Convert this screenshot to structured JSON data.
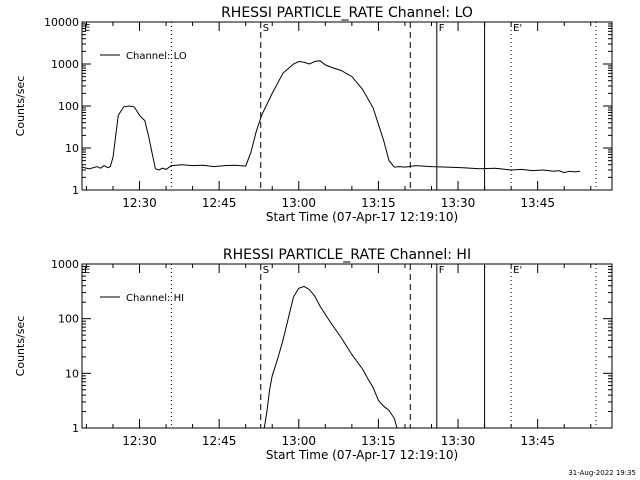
{
  "footer": {
    "timestamp": "31-Aug-2022 19:35"
  },
  "colors": {
    "background": "#ffffff",
    "foreground": "#000000"
  },
  "chart_data": [
    {
      "type": "line",
      "title": "RHESSI PARTICLE_RATE Channel: LO",
      "xlabel": "Start Time (07-Apr-17 12:19:10)",
      "ylabel": "Counts/sec",
      "yscale": "log",
      "ylim": [
        1,
        10000
      ],
      "yticks": [
        1,
        10,
        100,
        1000,
        10000
      ],
      "ytick_labels": [
        "1",
        "10",
        "100",
        "1000",
        "10000"
      ],
      "xlim": [
        "12:19:10",
        "13:59:00"
      ],
      "xticks": [
        "12:30",
        "12:45",
        "13:00",
        "13:15",
        "13:30",
        "13:45"
      ],
      "legend": {
        "label": "Channel: LO",
        "placement": "top-left"
      },
      "grid": false,
      "series": [
        {
          "name": "Channel: LO",
          "x": [
            "12:19:10",
            "12:20:30",
            "12:22:00",
            "12:22:40",
            "12:23:20",
            "12:24:00",
            "12:24:30",
            "12:25:00",
            "12:26:00",
            "12:27:00",
            "12:28:00",
            "12:29:00",
            "12:30:00",
            "12:31:00",
            "12:31:40",
            "12:32:20",
            "12:33:00",
            "12:33:40",
            "12:34:20",
            "12:35:00",
            "12:36:00",
            "12:38:00",
            "12:40:00",
            "12:42:00",
            "12:44:00",
            "12:46:00",
            "12:48:00",
            "12:50:00",
            "12:51:00",
            "12:52:00",
            "12:53:00",
            "12:55:00",
            "12:57:00",
            "12:59:00",
            "13:00:00",
            "13:01:00",
            "13:02:00",
            "13:03:00",
            "13:04:00",
            "13:05:00",
            "13:06:00",
            "13:08:00",
            "13:10:00",
            "13:12:00",
            "13:14:00",
            "13:16:00",
            "13:17:00",
            "13:18:00",
            "13:19:00",
            "13:20:00",
            "13:22:00",
            "13:25:00",
            "13:28:00",
            "13:31:00",
            "13:34:00",
            "13:37:00",
            "13:40:00",
            "13:42:00",
            "13:44:00",
            "13:46:00",
            "13:48:00",
            "13:49:00",
            "13:50:00",
            "13:51:00",
            "13:52:00",
            "13:53:00"
          ],
          "values": [
            3.5,
            3.2,
            3.6,
            3.3,
            3.8,
            3.4,
            3.6,
            6,
            60,
            95,
            100,
            95,
            60,
            45,
            20,
            8,
            3.2,
            3,
            3.3,
            3.1,
            3.8,
            4,
            3.8,
            3.9,
            3.6,
            3.8,
            3.9,
            3.7,
            8,
            25,
            60,
            200,
            600,
            1000,
            1150,
            1100,
            1000,
            1150,
            1200,
            950,
            850,
            700,
            500,
            250,
            90,
            15,
            5,
            3.5,
            3.6,
            3.5,
            3.8,
            3.6,
            3.5,
            3.4,
            3.2,
            3.3,
            3.0,
            3.1,
            2.9,
            3.0,
            2.8,
            2.9,
            2.6,
            2.8,
            2.7,
            2.8
          ]
        }
      ],
      "markers": [
        {
          "label": "E",
          "time": "12:19:10",
          "style": "dotted"
        },
        {
          "label": "",
          "time": "12:36:00",
          "style": "dotted"
        },
        {
          "label": "S",
          "time": "12:52:50",
          "style": "dashed"
        },
        {
          "label": "",
          "time": "13:21:00",
          "style": "dashed"
        },
        {
          "label": "F",
          "time": "13:26:00",
          "style": "solid"
        },
        {
          "label": "",
          "time": "13:35:00",
          "style": "solid"
        },
        {
          "label": "E'",
          "time": "13:40:00",
          "style": "dotted"
        },
        {
          "label": "",
          "time": "13:56:00",
          "style": "dotted"
        }
      ]
    },
    {
      "type": "line",
      "title": "RHESSI PARTICLE_RATE Channel: HI",
      "xlabel": "Start Time (07-Apr-17 12:19:10)",
      "ylabel": "Counts/sec",
      "yscale": "log",
      "ylim": [
        1,
        1000
      ],
      "yticks": [
        1,
        10,
        100,
        1000
      ],
      "ytick_labels": [
        "1",
        "10",
        "100",
        "1000"
      ],
      "xlim": [
        "12:19:10",
        "13:59:00"
      ],
      "xticks": [
        "12:30",
        "12:45",
        "13:00",
        "13:15",
        "13:30",
        "13:45"
      ],
      "legend": {
        "label": "Channel: HI",
        "placement": "top-left"
      },
      "grid": false,
      "series": [
        {
          "name": "Channel: HI",
          "x": [
            "12:53:30",
            "12:54:00",
            "12:54:30",
            "12:55:00",
            "12:56:00",
            "12:57:00",
            "12:58:00",
            "12:59:00",
            "13:00:00",
            "13:01:00",
            "13:02:00",
            "13:03:00",
            "13:04:00",
            "13:06:00",
            "13:08:00",
            "13:10:00",
            "13:12:00",
            "13:13:00",
            "13:14:00",
            "13:15:00",
            "13:16:00",
            "13:17:00",
            "13:18:00",
            "13:18:30"
          ],
          "values": [
            1,
            2,
            5,
            9,
            18,
            40,
            100,
            250,
            360,
            390,
            340,
            260,
            170,
            85,
            45,
            22,
            12,
            8,
            5.5,
            3.2,
            2.5,
            2.1,
            1.5,
            1
          ]
        }
      ],
      "markers": [
        {
          "label": "E",
          "time": "12:19:10",
          "style": "dotted"
        },
        {
          "label": "",
          "time": "12:36:00",
          "style": "dotted"
        },
        {
          "label": "S",
          "time": "12:52:50",
          "style": "dashed"
        },
        {
          "label": "",
          "time": "13:21:00",
          "style": "dashed"
        },
        {
          "label": "F",
          "time": "13:26:00",
          "style": "solid"
        },
        {
          "label": "",
          "time": "13:35:00",
          "style": "solid"
        },
        {
          "label": "E'",
          "time": "13:40:00",
          "style": "dotted"
        },
        {
          "label": "",
          "time": "13:56:00",
          "style": "dotted"
        }
      ]
    }
  ]
}
